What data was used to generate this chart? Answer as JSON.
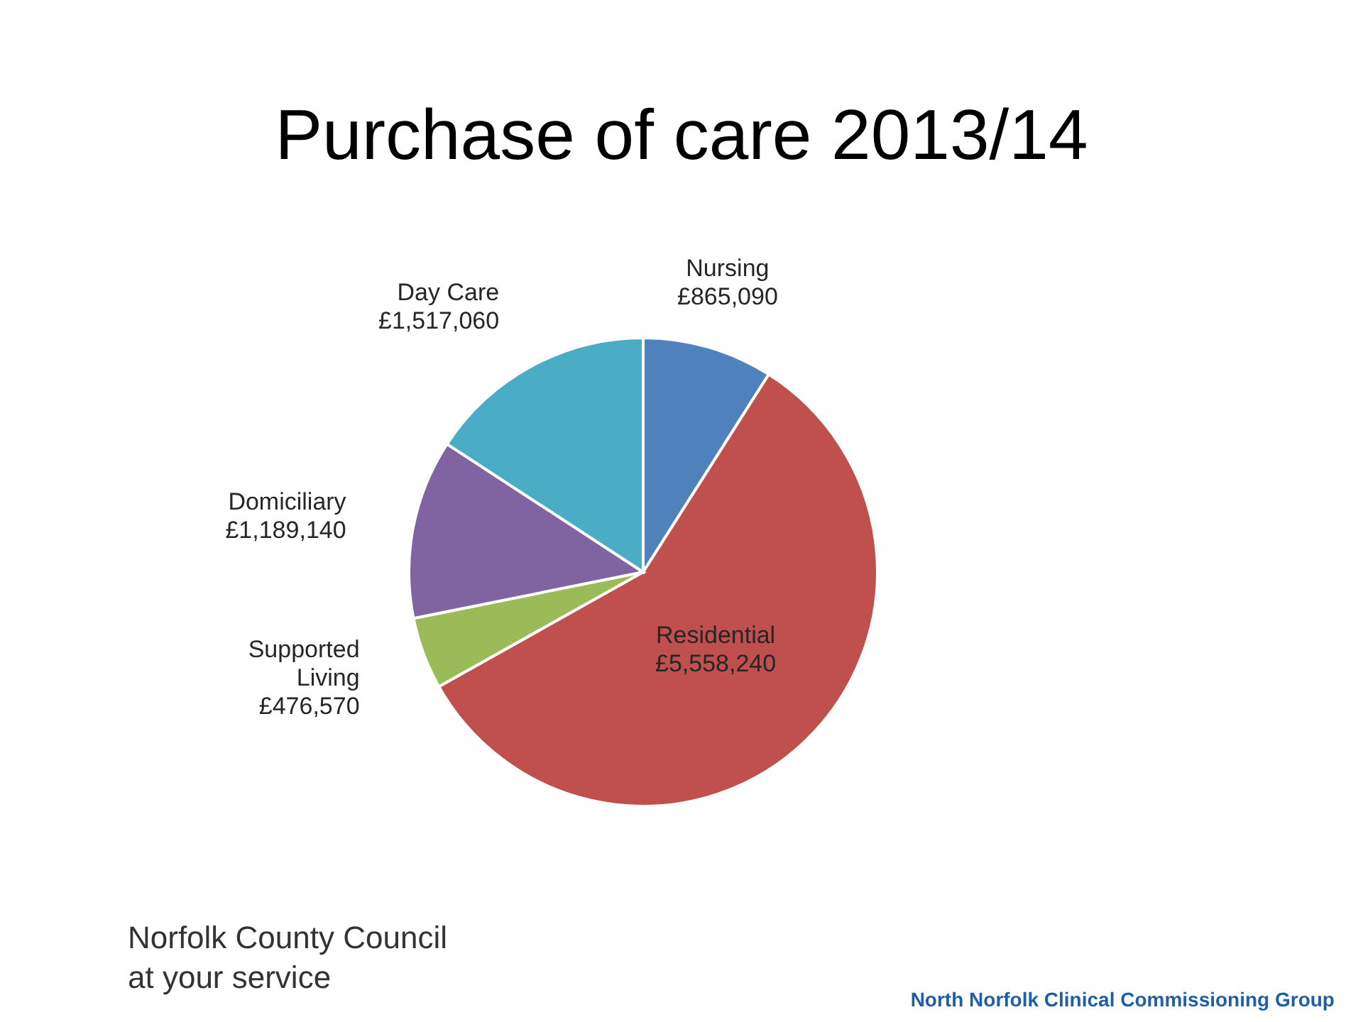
{
  "chart_data": {
    "type": "pie",
    "title": "Purchase of care 2013/14",
    "categories": [
      "Nursing",
      "Residential",
      "Supported Living",
      "Domiciliary",
      "Day Care"
    ],
    "values": [
      865090,
      5558240,
      476570,
      1189140,
      1517060
    ],
    "colors": [
      "#4f81bd",
      "#c0504d",
      "#9bbb59",
      "#8064a2",
      "#4bacc6"
    ],
    "value_labels": [
      "£865,090",
      "£5,558,240",
      "£476,570",
      "£1,189,140",
      "£1,517,060"
    ],
    "annotations": [
      "Norfolk County Council",
      "at your service",
      "North Norfolk Clinical Commissioning Group"
    ]
  }
}
